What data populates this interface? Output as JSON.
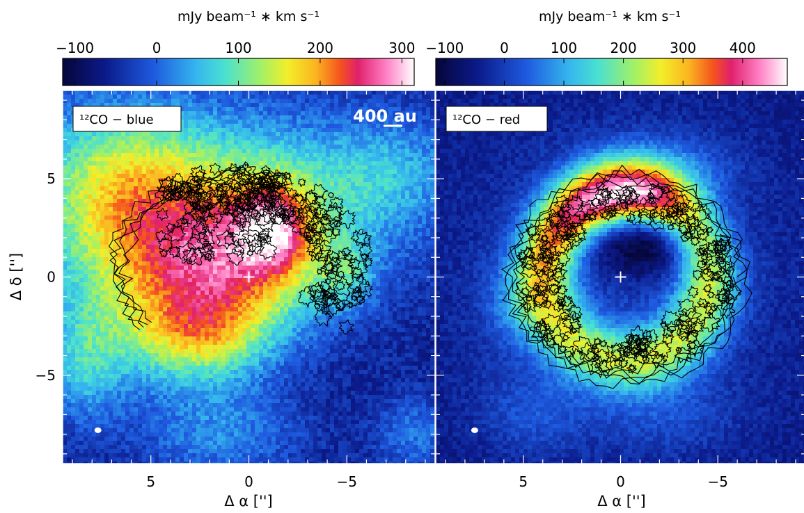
{
  "chart_data": [
    {
      "type": "heatmap",
      "panel_label": "¹²CO − blue",
      "scale_bar_label": "400 au",
      "colorbar": {
        "title": "mJy beam⁻¹ ∗ km s⁻¹",
        "range": [
          -115,
          315
        ],
        "ticks": [
          -100,
          0,
          100,
          200,
          300
        ],
        "tick_labels": [
          "−100",
          "0",
          "100",
          "200",
          "300"
        ]
      },
      "xlabel": "Δ α ['']",
      "ylabel": "Δ δ ['']",
      "xlim": [
        9.5,
        -9.5
      ],
      "ylim": [
        -9.5,
        9.5
      ],
      "x_ticks": [
        5,
        0,
        -5
      ],
      "x_tick_labels": [
        "5",
        "0",
        "−5"
      ],
      "y_ticks": [
        -5,
        0,
        5
      ],
      "y_tick_labels": [
        "−5",
        "0",
        "5"
      ],
      "markers": [
        {
          "kind": "cross",
          "x": 0,
          "y": 0
        },
        {
          "kind": "beam",
          "x": 7.7,
          "y": -7.8
        }
      ],
      "emission": {
        "background": -60,
        "components": [
          {
            "x": 1.5,
            "y": 3.5,
            "sx": 6.0,
            "sy": 3.5,
            "amp": 190
          },
          {
            "x": -1.3,
            "y": 2.5,
            "sx": 1.3,
            "sy": 1.6,
            "amp": 150
          },
          {
            "x": 0.8,
            "y": 0.2,
            "sx": 3.2,
            "sy": 2.4,
            "amp": 140
          },
          {
            "x": 2.5,
            "y": -3.2,
            "sx": 2.5,
            "sy": 1.6,
            "amp": 130
          },
          {
            "x": 7.0,
            "y": 5.0,
            "sx": 3.0,
            "sy": 3.0,
            "amp": 110
          },
          {
            "x": 8.5,
            "y": -4.5,
            "sx": 1.6,
            "sy": 2.2,
            "amp": 100
          },
          {
            "x": 5.0,
            "y": -1.0,
            "sx": 3.5,
            "sy": 3.0,
            "amp": 90
          },
          {
            "x": 1.5,
            "y": -8.0,
            "sx": 3.0,
            "sy": 1.8,
            "amp": 80
          },
          {
            "x": -5.0,
            "y": 0.0,
            "sx": 1.0,
            "sy": 1.2,
            "amp": 70
          },
          {
            "x": -7.5,
            "y": 5.5,
            "sx": 2.5,
            "sy": 2.0,
            "amp": 70
          },
          {
            "x": -8.5,
            "y": -8.0,
            "sx": 1.5,
            "sy": 1.5,
            "amp": 70
          }
        ]
      },
      "contours": {
        "shape": "arc",
        "center": [
          0.5,
          0.5
        ],
        "r_inner": 4.0,
        "r_outer": 6.8,
        "pa_start_deg": 60,
        "pa_end_deg": 220,
        "fill_center": [
          1.5,
          3.0
        ]
      }
    },
    {
      "type": "heatmap",
      "panel_label": "¹²CO − red",
      "colorbar": {
        "title": "mJy beam⁻¹ ∗ km s⁻¹",
        "range": [
          -115,
          475
        ],
        "ticks": [
          -100,
          0,
          100,
          200,
          300,
          400
        ],
        "tick_labels": [
          "−100",
          "0",
          "100",
          "200",
          "300",
          "400"
        ]
      },
      "xlabel": "Δ α ['']",
      "xlim": [
        9.5,
        -9.5
      ],
      "ylim": [
        -9.5,
        9.5
      ],
      "x_ticks": [
        5,
        0,
        -5
      ],
      "x_tick_labels": [
        "5",
        "0",
        "−5"
      ],
      "y_ticks": [
        -5,
        0,
        5
      ],
      "markers": [
        {
          "kind": "cross",
          "x": 0,
          "y": 0
        },
        {
          "kind": "beam",
          "x": 7.5,
          "y": -7.8
        }
      ],
      "emission": {
        "background": -60,
        "ring": {
          "cx": -0.3,
          "cy": 0.0,
          "r": 4.2,
          "width": 1.4,
          "amp": 250,
          "bright_pa_deg": 80,
          "bright_amp": 230
        },
        "components": [
          {
            "x": 0.0,
            "y": 0.0,
            "sx": 7.5,
            "sy": 7.0,
            "amp": 60
          },
          {
            "x": -2.0,
            "y": 5.5,
            "sx": 2.5,
            "sy": 1.2,
            "amp": 90
          },
          {
            "x": 5.5,
            "y": -1.5,
            "sx": 1.2,
            "sy": 1.5,
            "amp": 70
          },
          {
            "x": 4.5,
            "y": -7.0,
            "sx": 2.0,
            "sy": 1.5,
            "amp": 60
          },
          {
            "x": -2.5,
            "y": -7.0,
            "sx": 2.5,
            "sy": 1.5,
            "amp": 50
          }
        ],
        "holes": [
          {
            "x": -1.5,
            "y": 2.0,
            "sx": 2.3,
            "sy": 1.3,
            "amp": -160
          }
        ]
      },
      "contours": {
        "shape": "ring",
        "center": [
          -0.3,
          0.0
        ],
        "r_inner": 3.4,
        "r_outer": 5.6
      }
    }
  ]
}
